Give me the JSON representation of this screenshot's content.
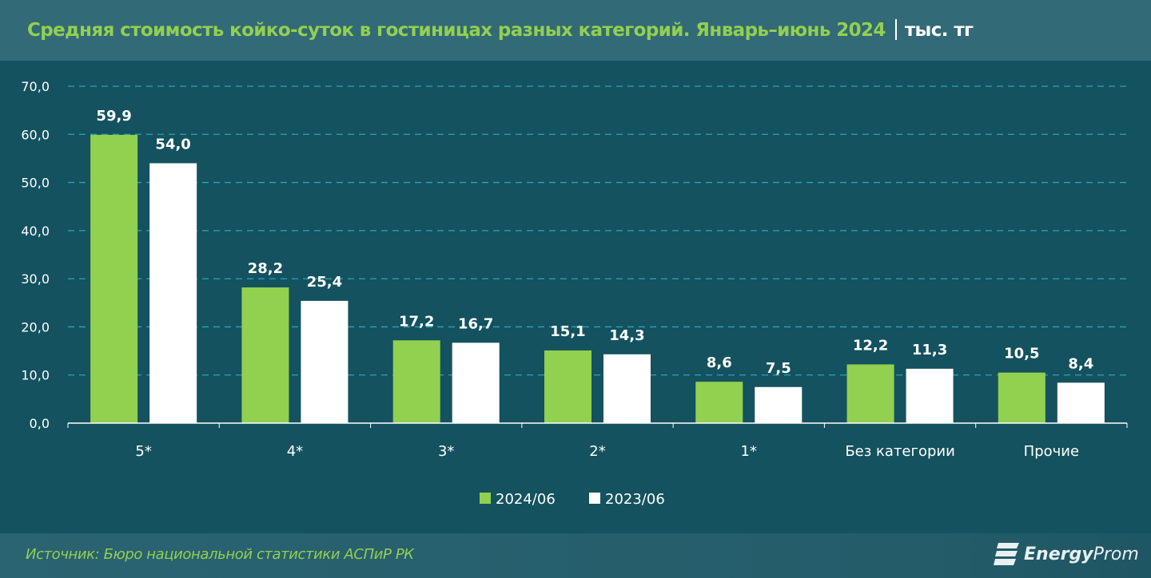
{
  "header": {
    "title": "Средняя стоимость койко-суток в гостиницах разных категорий. Январь–июнь 2024",
    "unit": "тыс. тг"
  },
  "footer": {
    "source": "Источник: Бюро национальной статистики АСПиР РК",
    "logo_text_bold": "Energy",
    "logo_text": "Prom"
  },
  "colors": {
    "series_2024": "#92d050",
    "series_2023": "#ffffff",
    "background": "#14525f"
  },
  "chart_data": {
    "type": "bar",
    "categories": [
      "5*",
      "4*",
      "3*",
      "2*",
      "1*",
      "Без категории",
      "Прочие"
    ],
    "series": [
      {
        "name": "2024/06",
        "values": [
          59.9,
          28.2,
          17.2,
          15.1,
          8.6,
          12.2,
          10.5
        ],
        "labels": [
          "59,9",
          "28,2",
          "17,2",
          "15,1",
          "8,6",
          "12,2",
          "10,5"
        ]
      },
      {
        "name": "2023/06",
        "values": [
          54.0,
          25.4,
          16.7,
          14.3,
          7.5,
          11.3,
          8.4
        ],
        "labels": [
          "54,0",
          "25,4",
          "16,7",
          "14,3",
          "7,5",
          "11,3",
          "8,4"
        ]
      }
    ],
    "yticks": [
      "0,0",
      "10,0",
      "20,0",
      "30,0",
      "40,0",
      "50,0",
      "60,0",
      "70,0"
    ],
    "ylim": [
      0,
      70
    ],
    "grid": true,
    "legend": "bottom-center"
  }
}
